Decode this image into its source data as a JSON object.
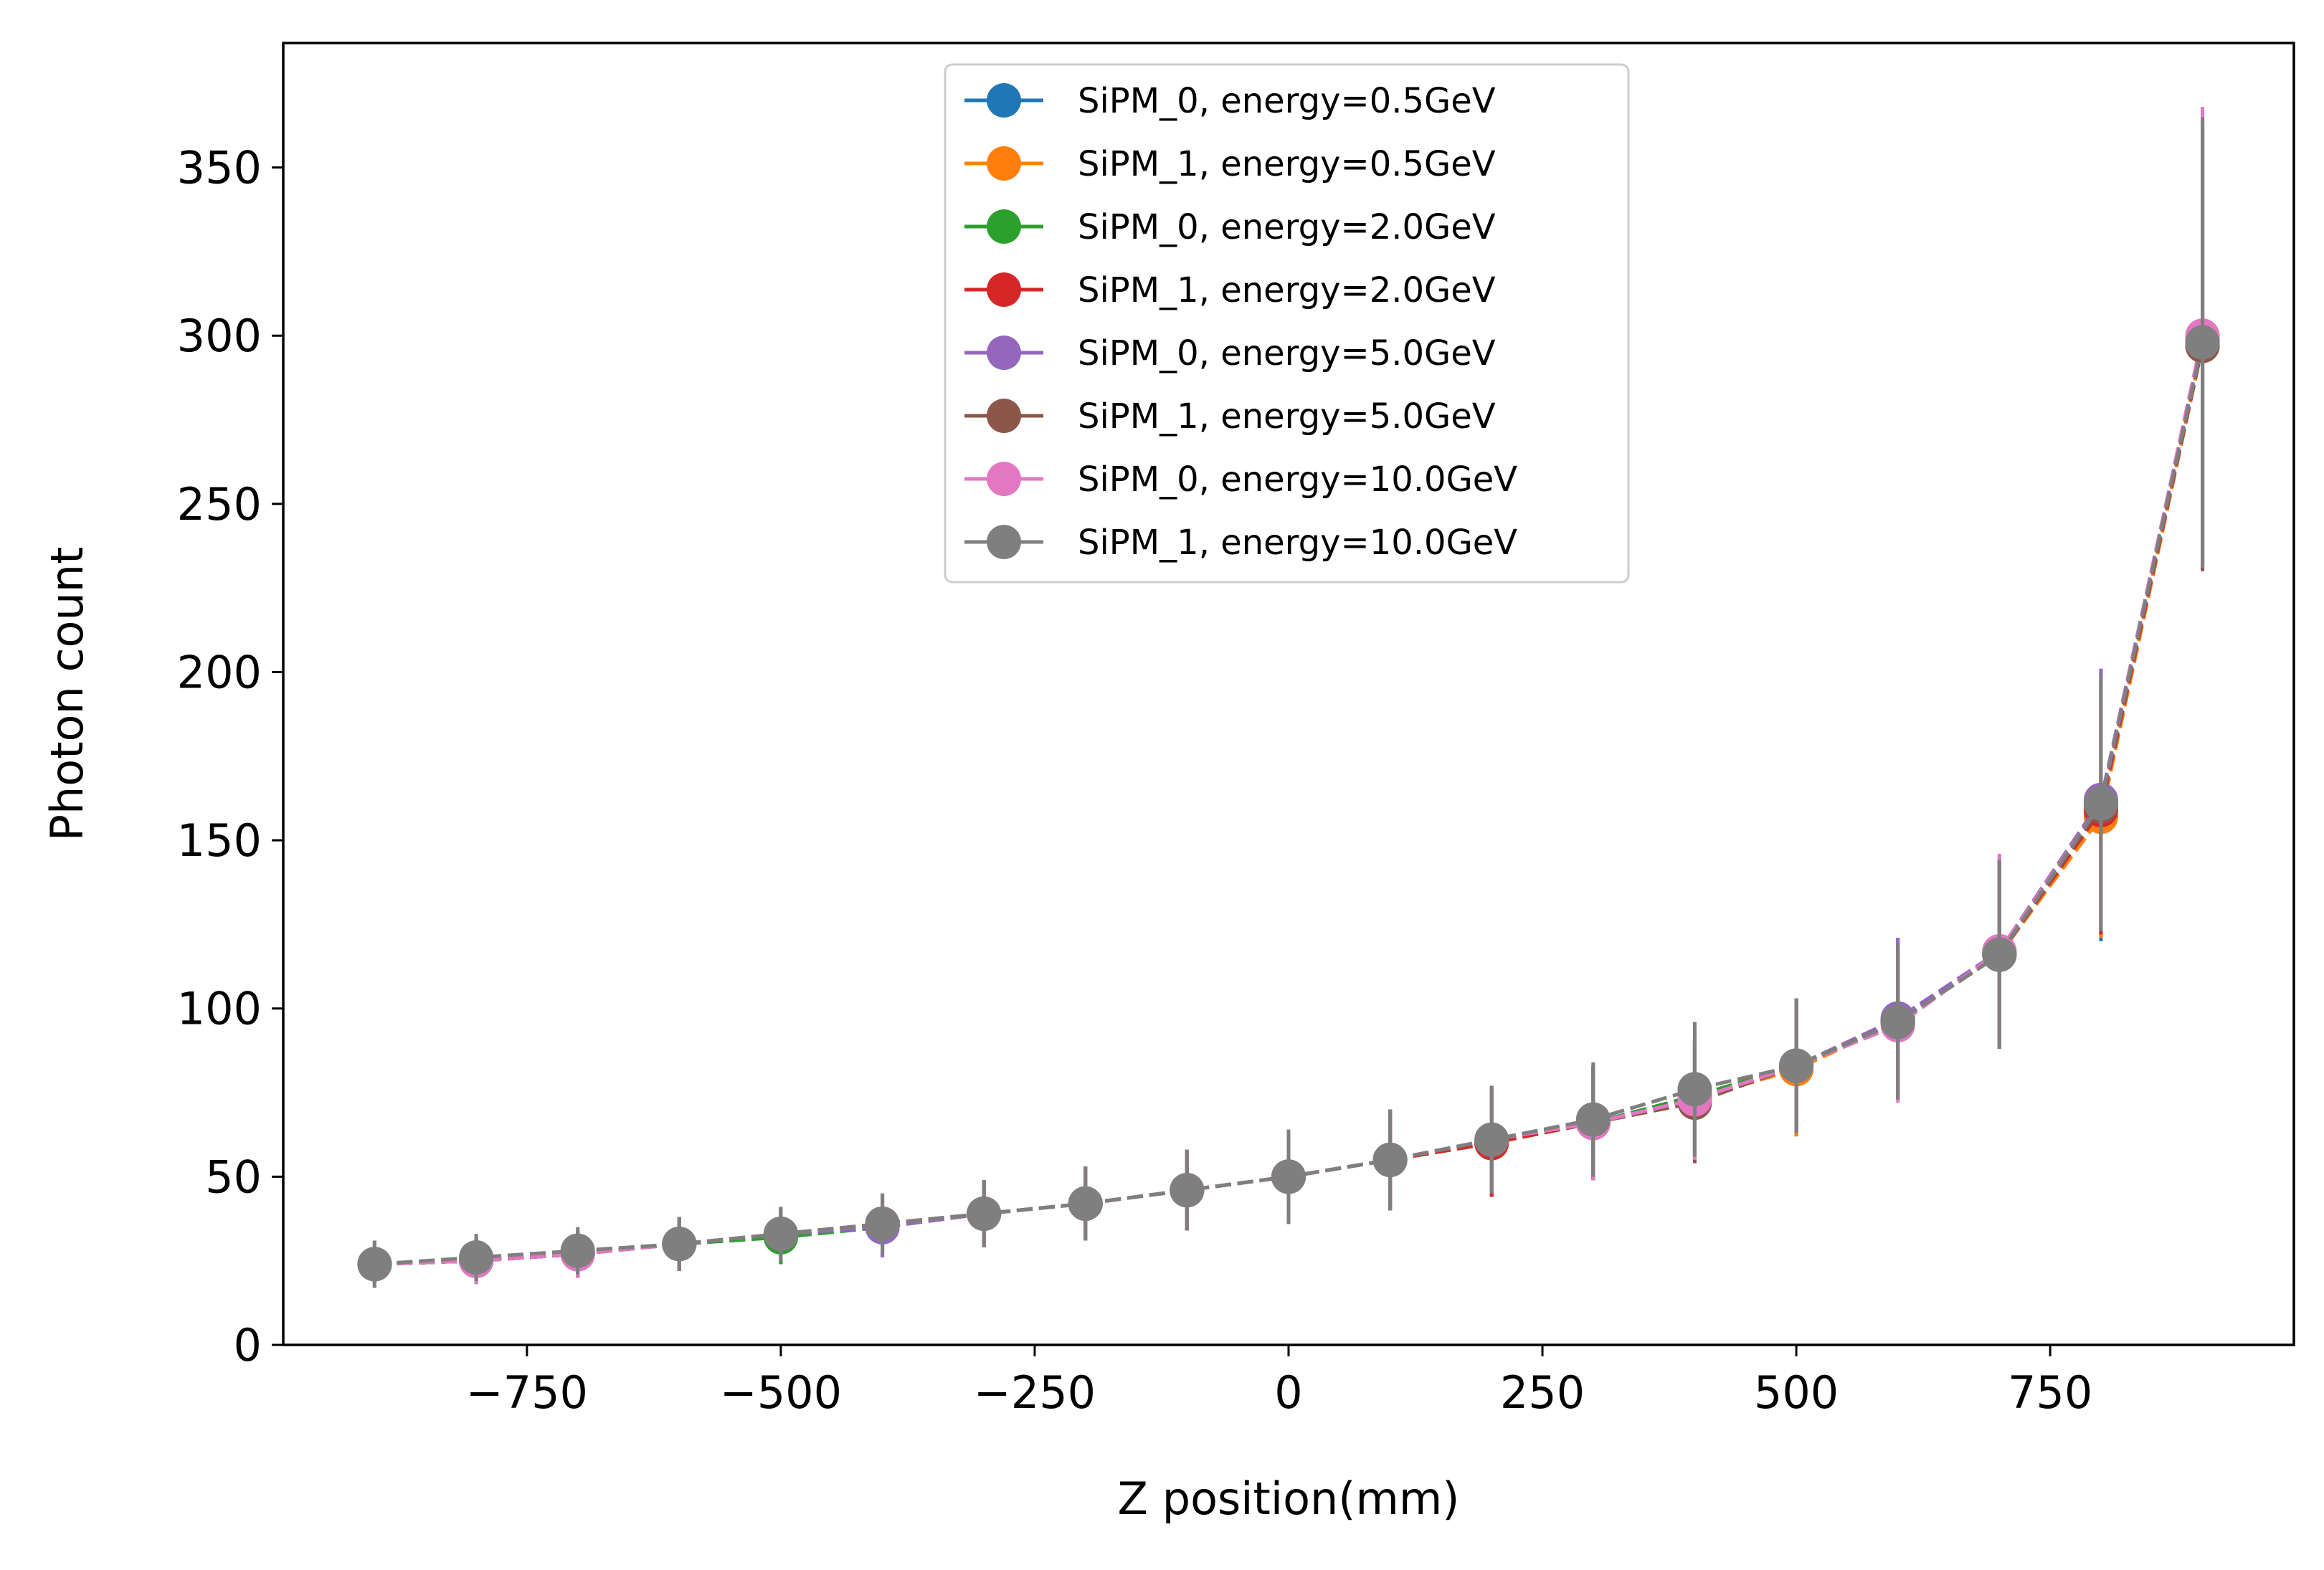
{
  "chart_data": {
    "type": "line",
    "xlabel": "Z position(mm)",
    "ylabel": "Photon count",
    "xlim": [
      -990,
      990
    ],
    "ylim": [
      0,
      387
    ],
    "x_ticks": [
      -750,
      -500,
      -250,
      0,
      250,
      500,
      750
    ],
    "x_tick_labels": [
      "−750",
      "−500",
      "−250",
      "0",
      "250",
      "500",
      "750"
    ],
    "y_ticks": [
      0,
      50,
      100,
      150,
      200,
      250,
      300,
      350
    ],
    "y_tick_labels": [
      "0",
      "50",
      "100",
      "150",
      "200",
      "250",
      "300",
      "350"
    ],
    "grid": false,
    "legend_position": "top-center",
    "line_style": "dashed",
    "marker": "circle",
    "error_bars": true,
    "x": [
      -900,
      -800,
      -700,
      -600,
      -500,
      -400,
      -300,
      -200,
      -100,
      0,
      100,
      200,
      300,
      400,
      500,
      600,
      700,
      800,
      900
    ],
    "series": [
      {
        "name": "SiPM_0, energy=0.5GeV",
        "color": "#1f77b4",
        "values": [
          24,
          25,
          27,
          30,
          32,
          35,
          39,
          42,
          46,
          50,
          55,
          60,
          66,
          74,
          82,
          97,
          116,
          160,
          297
        ],
        "errors": [
          7,
          7,
          7,
          8,
          8,
          9,
          10,
          11,
          12,
          14,
          15,
          16,
          17,
          18,
          20,
          24,
          28,
          40,
          65
        ]
      },
      {
        "name": "SiPM_1, energy=0.5GeV",
        "color": "#ff7f0e",
        "values": [
          24,
          25,
          27,
          30,
          33,
          36,
          39,
          42,
          46,
          50,
          55,
          60,
          66,
          73,
          82,
          96,
          116,
          157,
          297
        ],
        "errors": [
          7,
          7,
          7,
          8,
          8,
          9,
          10,
          11,
          12,
          14,
          15,
          16,
          17,
          18,
          20,
          23,
          28,
          36,
          65
        ]
      },
      {
        "name": "SiPM_0, energy=2.0GeV",
        "color": "#2ca02c",
        "values": [
          24,
          25,
          27,
          30,
          32,
          35,
          39,
          42,
          46,
          50,
          55,
          60,
          66,
          74,
          83,
          96,
          116,
          159,
          298
        ],
        "errors": [
          7,
          7,
          7,
          8,
          8,
          9,
          10,
          11,
          12,
          14,
          15,
          16,
          17,
          18,
          20,
          23,
          28,
          37,
          66
        ]
      },
      {
        "name": "SiPM_1, energy=2.0GeV",
        "color": "#d62728",
        "values": [
          24,
          25,
          27,
          30,
          33,
          36,
          39,
          42,
          46,
          50,
          55,
          60,
          66,
          73,
          83,
          96,
          116,
          159,
          297
        ],
        "errors": [
          7,
          7,
          7,
          8,
          8,
          9,
          10,
          11,
          12,
          14,
          15,
          16,
          17,
          18,
          20,
          23,
          28,
          37,
          66
        ]
      },
      {
        "name": "SiPM_0, energy=5.0GeV",
        "color": "#9467bd",
        "values": [
          24,
          25,
          27,
          30,
          33,
          35,
          39,
          42,
          46,
          50,
          55,
          61,
          66,
          73,
          83,
          97,
          117,
          162,
          299
        ],
        "errors": [
          7,
          7,
          7,
          8,
          8,
          9,
          10,
          11,
          12,
          14,
          15,
          16,
          17,
          18,
          20,
          24,
          28,
          39,
          68
        ]
      },
      {
        "name": "SiPM_1, energy=5.0GeV",
        "color": "#8c564b",
        "values": [
          24,
          25,
          27,
          30,
          33,
          36,
          39,
          42,
          46,
          50,
          55,
          61,
          66,
          72,
          83,
          96,
          116,
          160,
          297
        ],
        "errors": [
          7,
          7,
          7,
          8,
          8,
          9,
          10,
          11,
          12,
          14,
          15,
          16,
          17,
          18,
          20,
          23,
          28,
          37,
          67
        ]
      },
      {
        "name": "SiPM_0, energy=10.0GeV",
        "color": "#e377c2",
        "values": [
          24,
          25,
          27,
          30,
          33,
          36,
          39,
          42,
          46,
          50,
          55,
          61,
          66,
          73,
          83,
          95,
          117,
          161,
          300
        ],
        "errors": [
          7,
          7,
          7,
          8,
          8,
          9,
          10,
          11,
          12,
          14,
          15,
          16,
          17,
          18,
          20,
          23,
          29,
          38,
          68
        ]
      },
      {
        "name": "SiPM_1, energy=10.0GeV",
        "color": "#7f7f7f",
        "values": [
          24,
          26,
          28,
          30,
          33,
          36,
          39,
          42,
          46,
          50,
          55,
          61,
          67,
          76,
          83,
          96,
          116,
          161,
          298
        ],
        "errors": [
          7,
          7,
          7,
          8,
          8,
          9,
          10,
          11,
          12,
          14,
          15,
          16,
          17,
          20,
          20,
          23,
          28,
          38,
          67
        ]
      }
    ]
  }
}
